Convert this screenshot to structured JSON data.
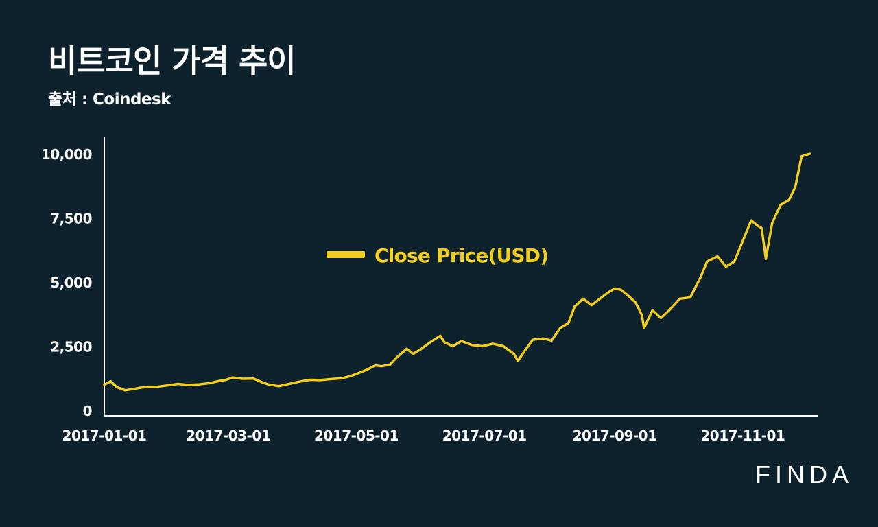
{
  "header": {
    "title": "비트코인 가격 추이",
    "source": "출처 : Coindesk"
  },
  "brand": {
    "logo_text": "FINDA"
  },
  "colors": {
    "background": "#0d222c",
    "line": "#f2cd1e",
    "axis": "#ffffff",
    "text": "#ffffff"
  },
  "chart_data": {
    "type": "line",
    "title": "",
    "xlabel": "",
    "ylabel": "",
    "x_range": [
      "2017-01-01",
      "2017-12-06"
    ],
    "ylim": [
      0,
      10000
    ],
    "grid": false,
    "legend_position": "center",
    "y_ticks": [
      {
        "value": 0,
        "label": "0"
      },
      {
        "value": 2500,
        "label": "2,500"
      },
      {
        "value": 5000,
        "label": "5,000"
      },
      {
        "value": 7500,
        "label": "7,500"
      },
      {
        "value": 10000,
        "label": "10,000"
      }
    ],
    "x_ticks": [
      {
        "value": "2017-01-01",
        "label": "2017-01-01"
      },
      {
        "value": "2017-03-01",
        "label": "2017-03-01"
      },
      {
        "value": "2017-05-01",
        "label": "2017-05-01"
      },
      {
        "value": "2017-07-01",
        "label": "2017-07-01"
      },
      {
        "value": "2017-09-01",
        "label": "2017-09-01"
      },
      {
        "value": "2017-11-01",
        "label": "2017-11-01"
      }
    ],
    "series": [
      {
        "name": "Close Price(USD)",
        "color": "#f2cd1e",
        "points": [
          [
            "2017-01-01",
            995
          ],
          [
            "2017-01-04",
            1130
          ],
          [
            "2017-01-07",
            900
          ],
          [
            "2017-01-11",
            780
          ],
          [
            "2017-01-14",
            820
          ],
          [
            "2017-01-18",
            880
          ],
          [
            "2017-01-22",
            920
          ],
          [
            "2017-01-26",
            915
          ],
          [
            "2017-01-31",
            970
          ],
          [
            "2017-02-05",
            1030
          ],
          [
            "2017-02-10",
            990
          ],
          [
            "2017-02-15",
            1010
          ],
          [
            "2017-02-20",
            1060
          ],
          [
            "2017-02-25",
            1150
          ],
          [
            "2017-02-28",
            1190
          ],
          [
            "2017-03-03",
            1280
          ],
          [
            "2017-03-08",
            1230
          ],
          [
            "2017-03-13",
            1240
          ],
          [
            "2017-03-17",
            1100
          ],
          [
            "2017-03-20",
            1010
          ],
          [
            "2017-03-25",
            940
          ],
          [
            "2017-03-30",
            1030
          ],
          [
            "2017-04-04",
            1120
          ],
          [
            "2017-04-09",
            1190
          ],
          [
            "2017-04-14",
            1180
          ],
          [
            "2017-04-19",
            1220
          ],
          [
            "2017-04-24",
            1250
          ],
          [
            "2017-04-28",
            1330
          ],
          [
            "2017-05-02",
            1450
          ],
          [
            "2017-05-06",
            1580
          ],
          [
            "2017-05-10",
            1750
          ],
          [
            "2017-05-13",
            1720
          ],
          [
            "2017-05-17",
            1780
          ],
          [
            "2017-05-20",
            2040
          ],
          [
            "2017-05-25",
            2400
          ],
          [
            "2017-05-28",
            2200
          ],
          [
            "2017-06-01",
            2400
          ],
          [
            "2017-06-06",
            2700
          ],
          [
            "2017-06-10",
            2900
          ],
          [
            "2017-06-12",
            2650
          ],
          [
            "2017-06-16",
            2500
          ],
          [
            "2017-06-20",
            2700
          ],
          [
            "2017-06-25",
            2550
          ],
          [
            "2017-06-30",
            2500
          ],
          [
            "2017-07-05",
            2600
          ],
          [
            "2017-07-10",
            2500
          ],
          [
            "2017-07-15",
            2200
          ],
          [
            "2017-07-17",
            1930
          ],
          [
            "2017-07-20",
            2300
          ],
          [
            "2017-07-24",
            2750
          ],
          [
            "2017-07-29",
            2800
          ],
          [
            "2017-08-02",
            2720
          ],
          [
            "2017-08-06",
            3200
          ],
          [
            "2017-08-10",
            3400
          ],
          [
            "2017-08-13",
            4050
          ],
          [
            "2017-08-17",
            4350
          ],
          [
            "2017-08-21",
            4100
          ],
          [
            "2017-08-25",
            4350
          ],
          [
            "2017-08-29",
            4600
          ],
          [
            "2017-09-01",
            4750
          ],
          [
            "2017-09-04",
            4700
          ],
          [
            "2017-09-07",
            4500
          ],
          [
            "2017-09-11",
            4200
          ],
          [
            "2017-09-14",
            3700
          ],
          [
            "2017-09-15",
            3200
          ],
          [
            "2017-09-19",
            3900
          ],
          [
            "2017-09-23",
            3600
          ],
          [
            "2017-09-27",
            3900
          ],
          [
            "2017-10-02",
            4350
          ],
          [
            "2017-10-07",
            4400
          ],
          [
            "2017-10-12",
            5200
          ],
          [
            "2017-10-15",
            5800
          ],
          [
            "2017-10-20",
            6000
          ],
          [
            "2017-10-24",
            5600
          ],
          [
            "2017-10-28",
            5800
          ],
          [
            "2017-11-02",
            6800
          ],
          [
            "2017-11-05",
            7400
          ],
          [
            "2017-11-08",
            7200
          ],
          [
            "2017-11-10",
            7100
          ],
          [
            "2017-11-12",
            5900
          ],
          [
            "2017-11-15",
            7300
          ],
          [
            "2017-11-19",
            8000
          ],
          [
            "2017-11-23",
            8200
          ],
          [
            "2017-11-26",
            8700
          ],
          [
            "2017-11-29",
            9900
          ],
          [
            "2017-12-03",
            10000
          ]
        ]
      }
    ]
  }
}
